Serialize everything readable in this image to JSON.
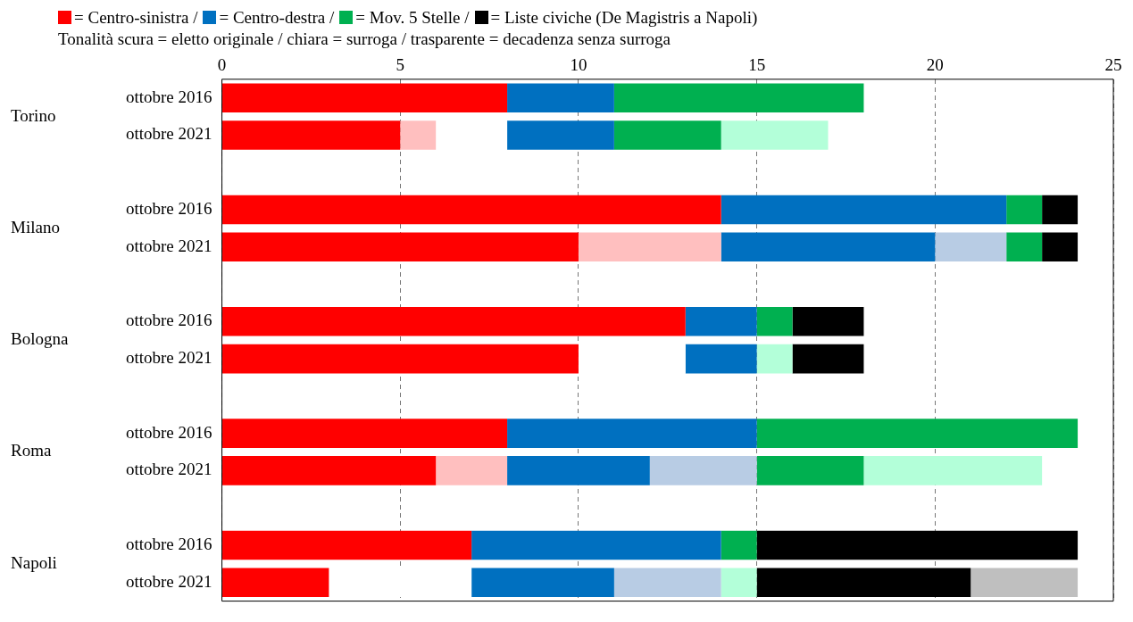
{
  "chart_data": {
    "type": "bar",
    "orientation": "horizontal",
    "stacked": true,
    "subtitle": "Tonalità scura = eletto originale / chiara = surroga / trasparente = decadenza senza surroga",
    "categories": [
      "ottobre 2016",
      "ottobre 2021",
      null,
      "ottobre 2016",
      "ottobre 2021",
      null,
      "ottobre 2016",
      "ottobre 2021",
      null,
      "ottobre 2016",
      "ottobre 2021",
      null,
      "ottobre 2016",
      "ottobre 2021"
    ],
    "annotations": [
      "Torino",
      "Milano",
      "Bologna",
      "Roma",
      "Napoli"
    ],
    "series": [
      {
        "name": "= Centro-sinistra /",
        "color": "#ff0000",
        "values": [
          8,
          5,
          null,
          14,
          10,
          null,
          13,
          10,
          null,
          8,
          6,
          null,
          7,
          3
        ]
      },
      {
        "color": "#ffbfbf",
        "values": [
          0,
          1,
          null,
          0,
          4,
          null,
          0,
          0,
          null,
          0,
          2,
          null,
          0,
          0
        ]
      },
      {
        "color": "#ffffff",
        "values": [
          0,
          2,
          null,
          0,
          0,
          null,
          0,
          3,
          null,
          0,
          0,
          null,
          0,
          4
        ]
      },
      {
        "name": "= Centro-destra /",
        "color": "#0070c0",
        "values": [
          3,
          3,
          null,
          8,
          6,
          null,
          2,
          2,
          null,
          7,
          4,
          null,
          7,
          4
        ]
      },
      {
        "color": "#b8cce4",
        "values": [
          0,
          0,
          null,
          0,
          2,
          null,
          0,
          0,
          null,
          0,
          3,
          null,
          0,
          3
        ]
      },
      {
        "name": "= Mov. 5 Stelle /",
        "color": "#00b050",
        "values": [
          7,
          3,
          null,
          1,
          1,
          null,
          1,
          0,
          null,
          9,
          3,
          null,
          1,
          0
        ]
      },
      {
        "color": "#b3ffd9",
        "values": [
          0,
          3,
          null,
          0,
          0,
          null,
          0,
          1,
          null,
          0,
          5,
          null,
          0,
          1
        ]
      },
      {
        "name": "= Liste civiche (De Magistris a Napoli)",
        "color": "#000000",
        "values": [
          0,
          0,
          null,
          1,
          1,
          null,
          2,
          2,
          null,
          0,
          0,
          null,
          9,
          6
        ]
      },
      {
        "color": "#bfbfbf",
        "values": [
          0,
          0,
          null,
          0,
          0,
          null,
          0,
          0,
          null,
          0,
          0,
          null,
          0,
          3
        ]
      }
    ],
    "xlim": [
      0,
      25
    ],
    "xticks": [
      0,
      5,
      10,
      15,
      20,
      25
    ],
    "grid": "x",
    "legend": "top left"
  }
}
